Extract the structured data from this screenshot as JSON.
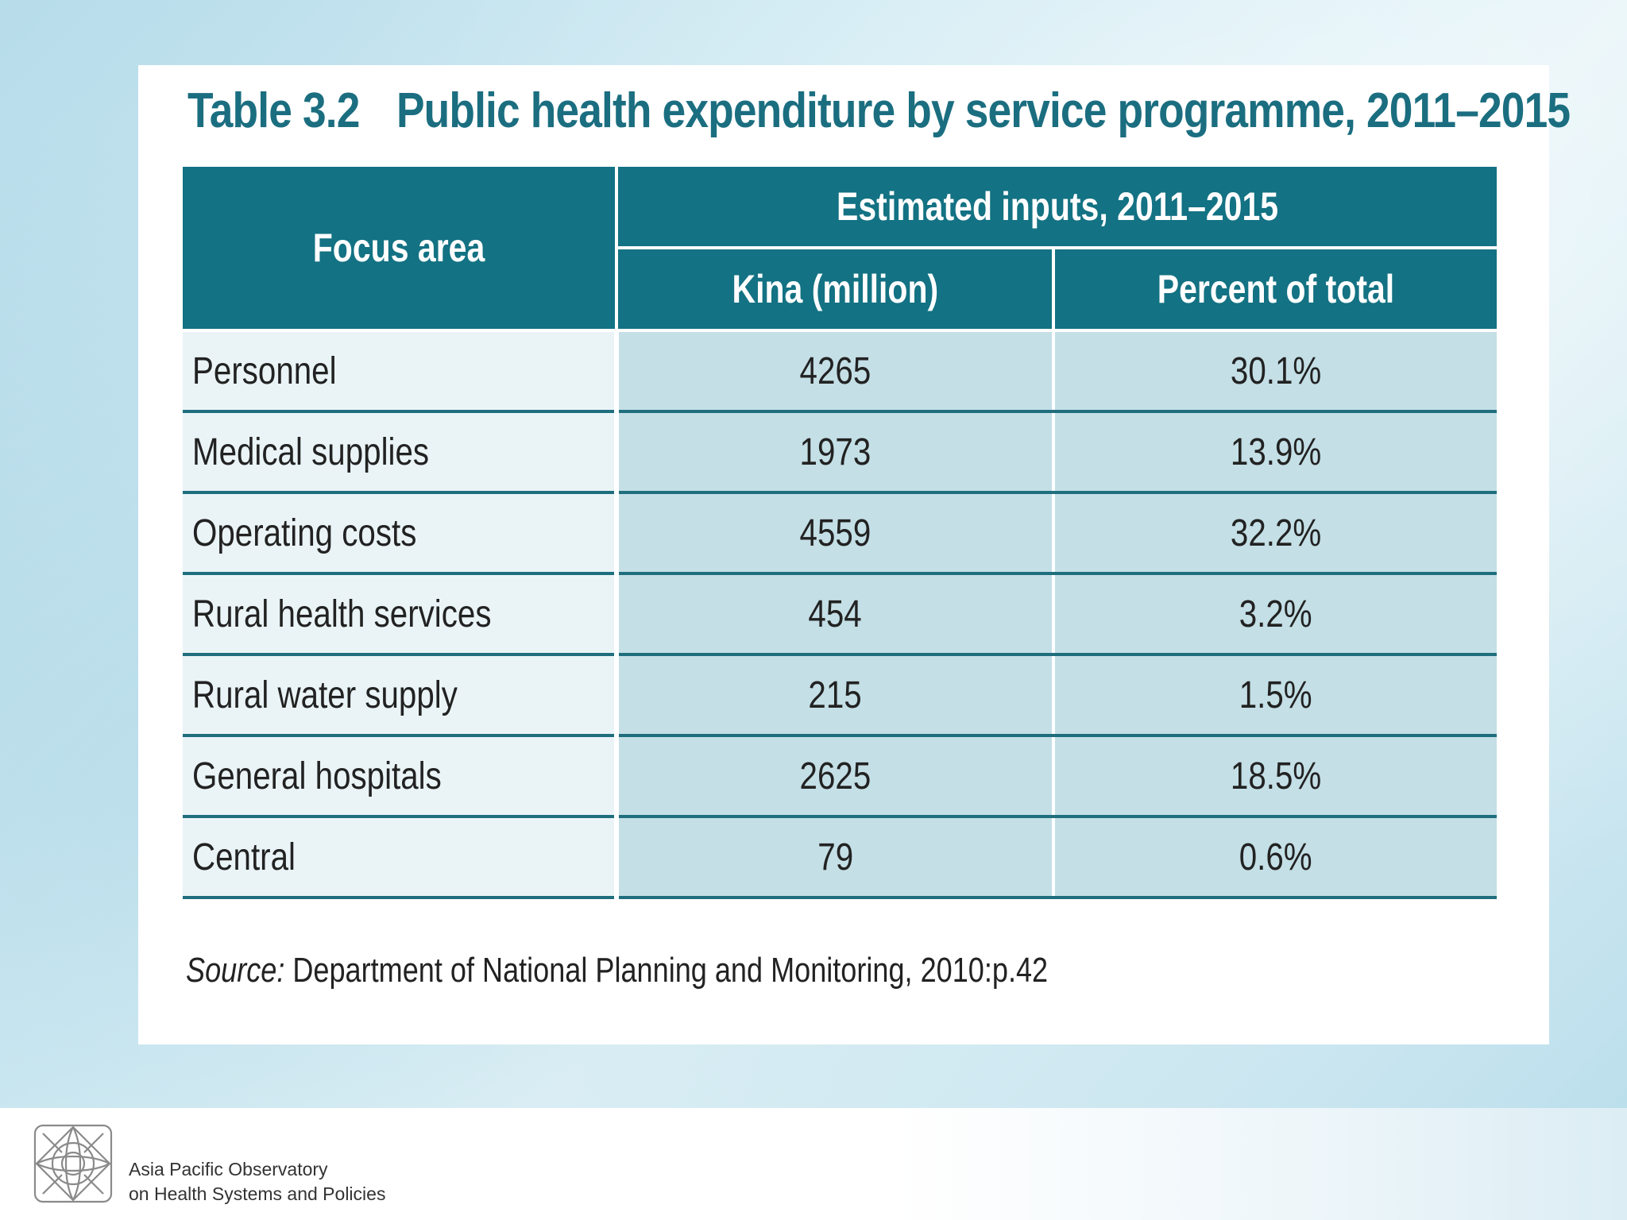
{
  "table": {
    "number": "Table 3.2",
    "title": "Public health expenditure by service programme, 2011–2015",
    "header": {
      "focus_area": "Focus area",
      "group": "Estimated inputs, 2011–2015",
      "col_kina": "Kina (million)",
      "col_percent": "Percent of total"
    },
    "rows": [
      {
        "area": "Personnel",
        "kina": "4265",
        "percent": "30.1%"
      },
      {
        "area": "Medical supplies",
        "kina": "1973",
        "percent": "13.9%"
      },
      {
        "area": "Operating costs",
        "kina": "4559",
        "percent": "32.2%"
      },
      {
        "area": "Rural health services",
        "kina": "454",
        "percent": "3.2%"
      },
      {
        "area": "Rural water supply",
        "kina": "215",
        "percent": "1.5%"
      },
      {
        "area": "General hospitals",
        "kina": "2625",
        "percent": "18.5%"
      },
      {
        "area": "Central",
        "kina": "79",
        "percent": "0.6%"
      }
    ],
    "source_label": "Source:",
    "source_text": " Department of National Planning and Monitoring, 2010:p.42"
  },
  "footer": {
    "org_line1": "Asia Pacific Observatory",
    "org_line2": "on Health Systems and Policies",
    "logo_icon": "observatory-logo-icon"
  },
  "colors": {
    "header_bg": "#137283",
    "title": "#1b6e80",
    "value_cell": "#c4dfe6",
    "label_cell": "#eaf4f7"
  }
}
